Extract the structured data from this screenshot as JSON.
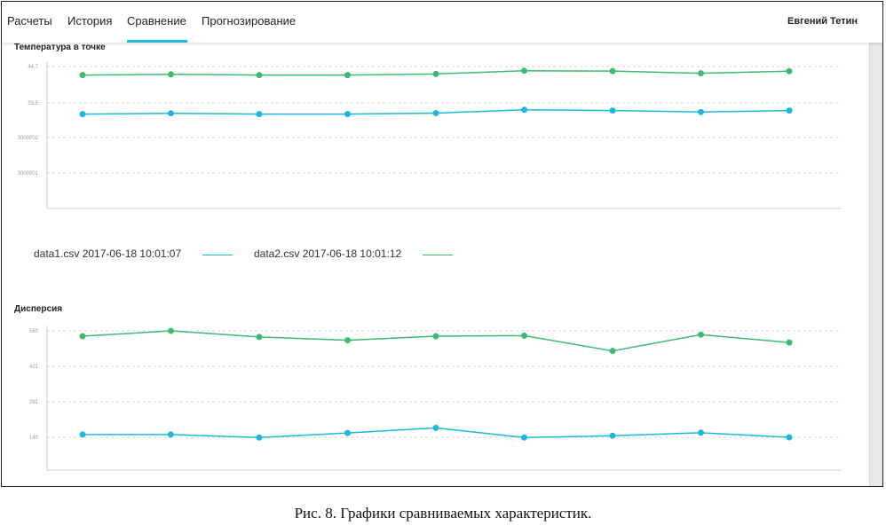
{
  "nav": {
    "items": [
      "Расчеты",
      "История",
      "Сравнение",
      "Прогнозирование"
    ],
    "active": "Сравнение",
    "user": "Евгений Тетин"
  },
  "legend": [
    {
      "label": "data1.csv 2017-06-18 10:01:07",
      "color": "#1eb7db"
    },
    {
      "label": "data2.csv 2017-06-18 10:01:12",
      "color": "#3dbb72"
    }
  ],
  "caption": "Рис. 8. Графики сравниваемых характеристик.",
  "chart_data": [
    {
      "type": "line",
      "title": "Температура в точке",
      "y_tick_labels": [
        "44.7",
        "33.5",
        "3000002",
        "3000001"
      ],
      "x": [
        1,
        2,
        3,
        4,
        5,
        6,
        7,
        8,
        9
      ],
      "series": [
        {
          "name": "data1.csv 2017-06-18 10:01:07",
          "color": "#1eb7db",
          "values": [
            0.665,
            0.67,
            0.665,
            0.665,
            0.672,
            0.695,
            0.69,
            0.68,
            0.69
          ]
        },
        {
          "name": "data2.csv 2017-06-18 10:01:12",
          "color": "#3dbb72",
          "values": [
            0.94,
            0.945,
            0.94,
            0.94,
            0.948,
            0.97,
            0.968,
            0.952,
            0.967
          ]
        }
      ],
      "grid": true
    },
    {
      "type": "line",
      "title": "Дисперсия",
      "y_tick_labels": [
        "560",
        "421",
        "281",
        "140"
      ],
      "yticks": [
        560,
        421,
        281,
        140
      ],
      "x": [
        1,
        2,
        3,
        4,
        5,
        6,
        7,
        8,
        9
      ],
      "series": [
        {
          "name": "data1.csv 2017-06-18 10:01:07",
          "color": "#1eb7db",
          "values": [
            151,
            151,
            139,
            157,
            177,
            139,
            146,
            158,
            140
          ]
        },
        {
          "name": "data2.csv 2017-06-18 10:01:12",
          "color": "#3dbb72",
          "values": [
            539,
            560,
            536,
            523,
            539,
            541,
            481,
            545,
            514
          ]
        }
      ],
      "grid": true
    }
  ]
}
